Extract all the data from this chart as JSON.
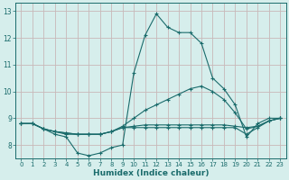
{
  "xlabel": "Humidex (Indice chaleur)",
  "xlim": [
    -0.5,
    23.5
  ],
  "ylim": [
    7.5,
    13.3
  ],
  "xticks": [
    0,
    1,
    2,
    3,
    4,
    5,
    6,
    7,
    8,
    9,
    10,
    11,
    12,
    13,
    14,
    15,
    16,
    17,
    18,
    19,
    20,
    21,
    22,
    23
  ],
  "yticks": [
    8,
    9,
    10,
    11,
    12,
    13
  ],
  "bg_color": "#d6eeec",
  "line_color": "#1a6b6b",
  "grid_color": "#c8b8b8",
  "line1_x": [
    0,
    1,
    2,
    3,
    4,
    5,
    6,
    7,
    8,
    9,
    10,
    11,
    12,
    13,
    14,
    15,
    16,
    17,
    18,
    19,
    20,
    21,
    22,
    23
  ],
  "line1_y": [
    8.8,
    8.8,
    8.6,
    8.4,
    8.3,
    7.7,
    7.6,
    7.7,
    7.9,
    8.0,
    10.7,
    12.1,
    12.9,
    12.4,
    12.2,
    12.2,
    11.8,
    10.5,
    10.1,
    9.5,
    8.3,
    8.8,
    9.0,
    9.0
  ],
  "line2_x": [
    0,
    1,
    2,
    3,
    4,
    5,
    6,
    7,
    8,
    9,
    10,
    11,
    12,
    13,
    14,
    15,
    16,
    17,
    18,
    19,
    20,
    21,
    22,
    23
  ],
  "line2_y": [
    8.8,
    8.8,
    8.6,
    8.5,
    8.4,
    8.4,
    8.4,
    8.4,
    8.5,
    8.7,
    9.0,
    9.3,
    9.5,
    9.7,
    9.9,
    10.1,
    10.2,
    10.0,
    9.7,
    9.2,
    8.6,
    8.7,
    8.9,
    9.0
  ],
  "line3_x": [
    0,
    1,
    2,
    3,
    4,
    5,
    6,
    7,
    8,
    9,
    10,
    11,
    12,
    13,
    14,
    15,
    16,
    17,
    18,
    19,
    20,
    21,
    22,
    23
  ],
  "line3_y": [
    8.8,
    8.8,
    8.6,
    8.5,
    8.45,
    8.4,
    8.4,
    8.4,
    8.5,
    8.65,
    8.7,
    8.75,
    8.75,
    8.75,
    8.75,
    8.75,
    8.75,
    8.75,
    8.75,
    8.7,
    8.65,
    8.7,
    8.9,
    9.0
  ],
  "line4_x": [
    0,
    1,
    2,
    3,
    4,
    5,
    6,
    7,
    8,
    9,
    10,
    11,
    12,
    13,
    14,
    15,
    16,
    17,
    18,
    19,
    20,
    21,
    22,
    23
  ],
  "line4_y": [
    8.8,
    8.8,
    8.6,
    8.5,
    8.45,
    8.4,
    8.4,
    8.4,
    8.5,
    8.65,
    8.65,
    8.65,
    8.65,
    8.65,
    8.65,
    8.65,
    8.65,
    8.65,
    8.65,
    8.65,
    8.4,
    8.65,
    8.9,
    9.0
  ]
}
